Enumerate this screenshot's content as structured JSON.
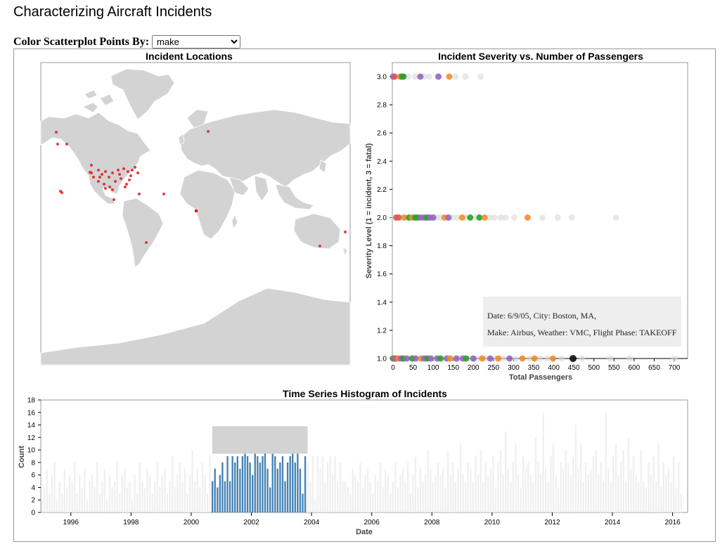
{
  "page": {
    "title": "Characterizing Aircraft Incidents"
  },
  "controls": {
    "color_label": "Color Scatterplot Points By:",
    "color_by": {
      "selected": "make"
    }
  },
  "map": {
    "title": "Incident Locations",
    "land_color": "#d3d3d3",
    "point_color": "#e41a1c"
  },
  "chart_data": [
    {
      "type": "scatter",
      "title": "Incident Severity vs. Number of Passengers",
      "xlabel": "Total Passengers",
      "ylabel": "Severity Level (1 = incident, 3 = fatal)",
      "xlim": [
        0,
        700
      ],
      "ylim": [
        1.0,
        3.0
      ],
      "xticks": [
        "0",
        "50",
        "100",
        "150",
        "200",
        "250",
        "300",
        "350",
        "400",
        "450",
        "500",
        "550",
        "600",
        "650",
        "700"
      ],
      "yticks": [
        "1.0",
        "1.2",
        "1.4",
        "1.6",
        "1.8",
        "2.0",
        "2.2",
        "2.4",
        "2.6",
        "2.8",
        "3.0"
      ],
      "make_colors": {
        "Airbus": "#f28e2b",
        "Boeing": "#9467bd",
        "McDonnell Douglas": "#2ca02c",
        "Other": "#e15759",
        "Unselected": "#d9d9d9"
      },
      "points": [
        {
          "x": 0,
          "y": 3,
          "c": "#9467bd"
        },
        {
          "x": 4,
          "y": 3,
          "c": "#e15759"
        },
        {
          "x": 18,
          "y": 3,
          "c": "#f28e2b"
        },
        {
          "x": 22,
          "y": 3,
          "c": "#2ca02c"
        },
        {
          "x": 26,
          "y": 3,
          "c": "#2ca02c"
        },
        {
          "x": 38,
          "y": 3,
          "c": "#d9d9d9"
        },
        {
          "x": 55,
          "y": 3,
          "c": "#d9d9d9"
        },
        {
          "x": 68,
          "y": 3,
          "c": "#9467bd"
        },
        {
          "x": 78,
          "y": 3,
          "c": "#d9d9d9"
        },
        {
          "x": 90,
          "y": 3,
          "c": "#d9d9d9"
        },
        {
          "x": 112,
          "y": 3,
          "c": "#d9d9d9"
        },
        {
          "x": 113,
          "y": 3,
          "c": "#9467bd"
        },
        {
          "x": 140,
          "y": 3,
          "c": "#f28e2b"
        },
        {
          "x": 155,
          "y": 3,
          "c": "#d9d9d9"
        },
        {
          "x": 180,
          "y": 3,
          "c": "#d9d9d9"
        },
        {
          "x": 218,
          "y": 3,
          "c": "#d9d9d9"
        },
        {
          "x": 0,
          "y": 2,
          "c": "#d9d9d9"
        },
        {
          "x": 8,
          "y": 2,
          "c": "#e15759"
        },
        {
          "x": 14,
          "y": 2,
          "c": "#e15759"
        },
        {
          "x": 20,
          "y": 2,
          "c": "#d9d9d9"
        },
        {
          "x": 28,
          "y": 2,
          "c": "#f28e2b"
        },
        {
          "x": 34,
          "y": 2,
          "c": "#d9d9d9"
        },
        {
          "x": 40,
          "y": 2,
          "c": "#2ca02c"
        },
        {
          "x": 48,
          "y": 2,
          "c": "#f28e2b"
        },
        {
          "x": 55,
          "y": 2,
          "c": "#2ca02c"
        },
        {
          "x": 62,
          "y": 2,
          "c": "#2ca02c"
        },
        {
          "x": 70,
          "y": 2,
          "c": "#9467bd"
        },
        {
          "x": 78,
          "y": 2,
          "c": "#9467bd"
        },
        {
          "x": 85,
          "y": 2,
          "c": "#2ca02c"
        },
        {
          "x": 92,
          "y": 2,
          "c": "#9467bd"
        },
        {
          "x": 100,
          "y": 2,
          "c": "#9467bd"
        },
        {
          "x": 108,
          "y": 2,
          "c": "#d9d9d9"
        },
        {
          "x": 118,
          "y": 2,
          "c": "#d9d9d9"
        },
        {
          "x": 128,
          "y": 2,
          "c": "#f28e2b"
        },
        {
          "x": 138,
          "y": 2,
          "c": "#9467bd"
        },
        {
          "x": 148,
          "y": 2,
          "c": "#d9d9d9"
        },
        {
          "x": 160,
          "y": 2,
          "c": "#d9d9d9"
        },
        {
          "x": 172,
          "y": 2,
          "c": "#f28e2b"
        },
        {
          "x": 182,
          "y": 2,
          "c": "#d9d9d9"
        },
        {
          "x": 192,
          "y": 2,
          "c": "#2ca02c"
        },
        {
          "x": 205,
          "y": 2,
          "c": "#d9d9d9"
        },
        {
          "x": 215,
          "y": 2,
          "c": "#2ca02c"
        },
        {
          "x": 228,
          "y": 2,
          "c": "#f28e2b"
        },
        {
          "x": 240,
          "y": 2,
          "c": "#d9d9d9"
        },
        {
          "x": 252,
          "y": 2,
          "c": "#d9d9d9"
        },
        {
          "x": 268,
          "y": 2,
          "c": "#d9d9d9"
        },
        {
          "x": 280,
          "y": 2,
          "c": "#d9d9d9"
        },
        {
          "x": 302,
          "y": 2,
          "c": "#d9d9d9"
        },
        {
          "x": 335,
          "y": 2,
          "c": "#f28e2b"
        },
        {
          "x": 372,
          "y": 2,
          "c": "#d9d9d9"
        },
        {
          "x": 410,
          "y": 2,
          "c": "#d9d9d9"
        },
        {
          "x": 445,
          "y": 2,
          "c": "#d9d9d9"
        },
        {
          "x": 555,
          "y": 2,
          "c": "#d9d9d9"
        },
        {
          "x": 0,
          "y": 1,
          "c": "#2ca02c"
        },
        {
          "x": 3,
          "y": 1,
          "c": "#9467bd"
        },
        {
          "x": 8,
          "y": 1,
          "c": "#e15759"
        },
        {
          "x": 14,
          "y": 1,
          "c": "#f28e2b"
        },
        {
          "x": 20,
          "y": 1,
          "c": "#9467bd"
        },
        {
          "x": 26,
          "y": 1,
          "c": "#2ca02c"
        },
        {
          "x": 34,
          "y": 1,
          "c": "#9467bd"
        },
        {
          "x": 42,
          "y": 1,
          "c": "#d9d9d9"
        },
        {
          "x": 48,
          "y": 1,
          "c": "#2ca02c"
        },
        {
          "x": 56,
          "y": 1,
          "c": "#9467bd"
        },
        {
          "x": 62,
          "y": 1,
          "c": "#d9d9d9"
        },
        {
          "x": 70,
          "y": 1,
          "c": "#f28e2b"
        },
        {
          "x": 78,
          "y": 1,
          "c": "#9467bd"
        },
        {
          "x": 86,
          "y": 1,
          "c": "#2ca02c"
        },
        {
          "x": 94,
          "y": 1,
          "c": "#9467bd"
        },
        {
          "x": 102,
          "y": 1,
          "c": "#d9d9d9"
        },
        {
          "x": 110,
          "y": 1,
          "c": "#9467bd"
        },
        {
          "x": 118,
          "y": 1,
          "c": "#2ca02c"
        },
        {
          "x": 126,
          "y": 1,
          "c": "#d9d9d9"
        },
        {
          "x": 134,
          "y": 1,
          "c": "#9467bd"
        },
        {
          "x": 142,
          "y": 1,
          "c": "#f28e2b"
        },
        {
          "x": 150,
          "y": 1,
          "c": "#d9d9d9"
        },
        {
          "x": 158,
          "y": 1,
          "c": "#9467bd"
        },
        {
          "x": 166,
          "y": 1,
          "c": "#d9d9d9"
        },
        {
          "x": 174,
          "y": 1,
          "c": "#9467bd"
        },
        {
          "x": 182,
          "y": 1,
          "c": "#2ca02c"
        },
        {
          "x": 192,
          "y": 1,
          "c": "#d9d9d9"
        },
        {
          "x": 200,
          "y": 1,
          "c": "#9467bd"
        },
        {
          "x": 212,
          "y": 1,
          "c": "#d9d9d9"
        },
        {
          "x": 222,
          "y": 1,
          "c": "#f28e2b"
        },
        {
          "x": 232,
          "y": 1,
          "c": "#d9d9d9"
        },
        {
          "x": 242,
          "y": 1,
          "c": "#9467bd"
        },
        {
          "x": 255,
          "y": 1,
          "c": "#d9d9d9"
        },
        {
          "x": 262,
          "y": 1,
          "c": "#f28e2b"
        },
        {
          "x": 275,
          "y": 1,
          "c": "#d9d9d9"
        },
        {
          "x": 290,
          "y": 1,
          "c": "#9467bd"
        },
        {
          "x": 305,
          "y": 1,
          "c": "#d9d9d9"
        },
        {
          "x": 322,
          "y": 1,
          "c": "#f28e2b"
        },
        {
          "x": 340,
          "y": 1,
          "c": "#d9d9d9"
        },
        {
          "x": 352,
          "y": 1,
          "c": "#f28e2b"
        },
        {
          "x": 365,
          "y": 1,
          "c": "#d9d9d9"
        },
        {
          "x": 385,
          "y": 1,
          "c": "#d9d9d9"
        },
        {
          "x": 398,
          "y": 1,
          "c": "#f28e2b"
        },
        {
          "x": 420,
          "y": 1,
          "c": "#d9d9d9"
        },
        {
          "x": 448,
          "y": 1,
          "c": "#111111"
        },
        {
          "x": 470,
          "y": 1,
          "c": "#d9d9d9"
        },
        {
          "x": 540,
          "y": 1,
          "c": "#d9d9d9"
        },
        {
          "x": 590,
          "y": 1,
          "c": "#d9d9d9"
        },
        {
          "x": 700,
          "y": 1,
          "c": "#d9d9d9"
        }
      ],
      "tooltip": {
        "line1": "Date: 6/9/05, City: Boston, MA,",
        "line2": "Make: Airbus, Weather: VMC, Flight Phase: TAKEOFF"
      }
    },
    {
      "type": "bar",
      "title": "Time Series Histogram of Incidents",
      "xlabel": "Date",
      "ylabel": "Count",
      "ylim": [
        0,
        18
      ],
      "yticks": [
        "0",
        "2",
        "4",
        "6",
        "8",
        "10",
        "12",
        "14",
        "16",
        "18"
      ],
      "xlim": [
        1995.0,
        2016.5
      ],
      "xticks": [
        "1996",
        "1998",
        "2000",
        "2002",
        "2004",
        "2006",
        "2008",
        "2010",
        "2012",
        "2014",
        "2016"
      ],
      "bin_width_years": 0.0833,
      "brush": [
        2000.7,
        2003.87
      ],
      "selected_color": "#4682b4",
      "unselected_color": "#f0f0f0",
      "brush_color": "#d3d3d3",
      "counts": [
        2,
        4,
        7,
        3,
        6,
        8,
        2,
        5,
        3,
        7,
        4,
        6,
        5,
        8,
        3,
        6,
        4,
        7,
        2,
        5,
        6,
        4,
        8,
        3,
        5,
        7,
        2,
        6,
        4,
        5,
        8,
        3,
        6,
        7,
        4,
        5,
        2,
        6,
        3,
        8,
        5,
        4,
        7,
        6,
        3,
        5,
        8,
        4,
        6,
        7,
        3,
        5,
        9,
        4,
        6,
        8,
        5,
        7,
        3,
        6,
        10,
        5,
        7,
        4,
        8,
        6,
        3,
        9,
        5,
        7,
        4,
        6,
        8,
        5,
        9,
        5,
        9,
        8,
        9,
        7,
        9,
        13,
        9,
        8,
        6,
        11,
        9,
        8,
        9,
        10,
        7,
        4,
        10,
        9,
        7,
        8,
        9,
        5,
        8,
        9,
        10,
        8,
        11,
        7,
        3,
        9,
        8,
        5,
        9,
        2,
        9,
        7,
        9,
        5,
        8,
        9,
        6,
        9,
        5,
        8,
        5,
        5,
        4,
        3,
        7,
        6,
        5,
        8,
        4,
        6,
        7,
        5,
        3,
        6,
        5,
        8,
        4,
        7,
        6,
        3,
        5,
        8,
        4,
        6,
        7,
        5,
        8,
        3,
        6,
        9,
        4,
        7,
        5,
        6,
        10,
        7,
        5,
        6,
        8,
        6,
        7,
        4,
        10,
        6,
        8,
        5,
        7,
        11,
        6,
        5,
        8,
        7,
        5,
        9,
        6,
        10,
        5,
        8,
        6,
        7,
        9,
        4,
        8,
        10,
        6,
        13,
        7,
        5,
        8,
        11,
        6,
        4,
        9,
        7,
        8,
        6,
        5,
        12,
        8,
        6,
        16,
        7,
        5,
        9,
        11,
        6,
        4,
        8,
        7,
        10,
        8,
        6,
        9,
        14,
        7,
        11,
        5,
        8,
        6,
        7,
        9,
        10,
        6,
        8,
        5,
        16,
        7,
        5,
        9,
        11,
        6,
        8,
        10,
        5,
        12,
        7,
        9,
        6,
        5,
        10,
        5,
        4,
        8,
        6,
        9,
        5,
        11,
        4,
        8,
        6,
        7,
        5,
        9,
        4,
        8,
        3
      ]
    }
  ]
}
